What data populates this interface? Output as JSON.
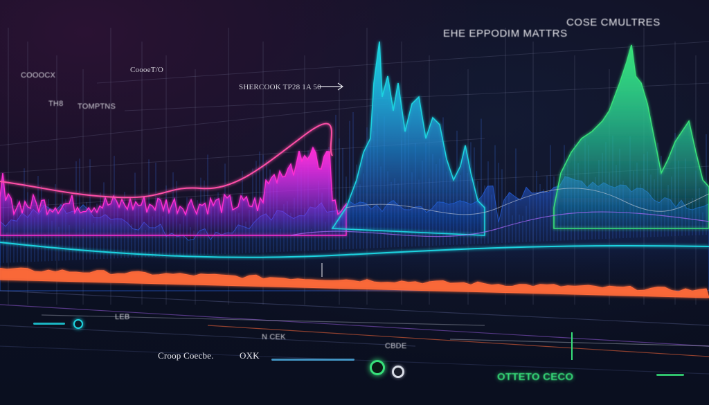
{
  "labels": {
    "top_title": "EHE EPPODIM MATTRS",
    "top_title_2": "COSE CMULTRES",
    "upper_left_1": "CoooeT/O",
    "upper_mid": "SHERCOOK TP28 1A 50",
    "left_1": "COOOCX",
    "left_2": "TH8",
    "left_3": "TOMPTNS",
    "bottom_left": "Croop Coecbe.",
    "bottom_left_2": "OXK",
    "bottom_mid_1": "LEB",
    "bottom_mid_2": "N CEK",
    "bottom_mid_3": "CBDE",
    "bottom_right": "OTTETO CECO"
  },
  "colors": {
    "cyan": "#1fd3e0",
    "teal": "#21e3b8",
    "green": "#37e07a",
    "magenta": "#ff2fd4",
    "pink": "#ff4fa7",
    "orange": "#ff6a3a",
    "blue": "#2a6cff",
    "white_line": "#c9cfdd"
  }
}
